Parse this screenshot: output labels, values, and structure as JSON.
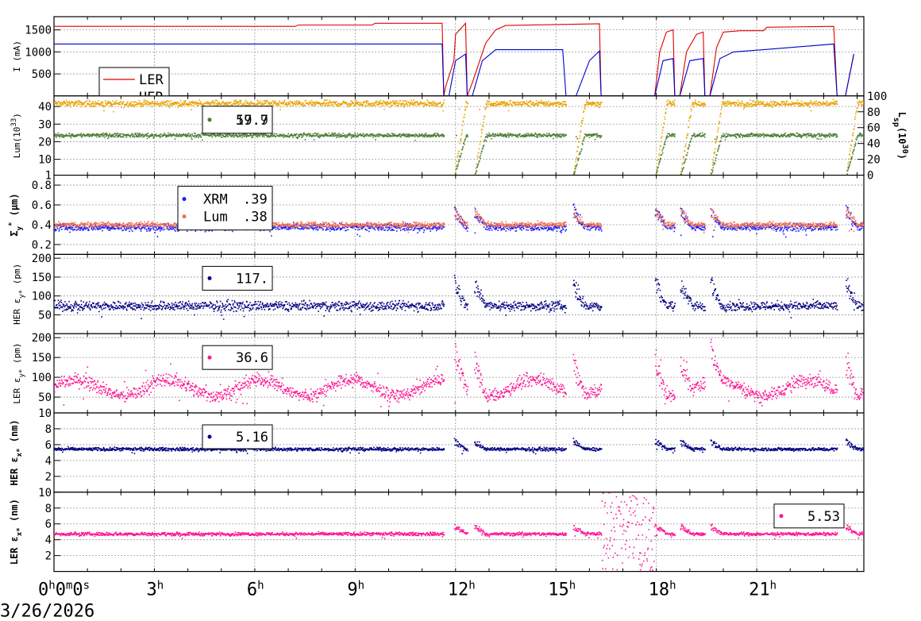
{
  "chart_data": {
    "type": "scatter",
    "date_label": "3/26/2026",
    "x_unit": "hours",
    "x_range": [
      0,
      24.2
    ],
    "x_ticks": [
      {
        "value": 0,
        "main": "0",
        "parts": [
          "h",
          "0",
          "m",
          "0",
          "s"
        ]
      },
      {
        "value": 3,
        "main": "3",
        "parts": [
          "h"
        ]
      },
      {
        "value": 6,
        "main": "6",
        "parts": [
          "h"
        ]
      },
      {
        "value": 9,
        "main": "9",
        "parts": [
          "h"
        ]
      },
      {
        "value": 12,
        "main": "12",
        "parts": [
          "h"
        ]
      },
      {
        "value": 15,
        "main": "15",
        "parts": [
          "h"
        ]
      },
      {
        "value": 18,
        "main": "18",
        "parts": [
          "h"
        ]
      },
      {
        "value": 21,
        "main": "21",
        "parts": [
          "h"
        ]
      }
    ],
    "beam_gaps_hours": [
      [
        11.65,
        11.95
      ],
      [
        12.35,
        12.55
      ],
      [
        15.3,
        15.5
      ],
      [
        16.35,
        17.95
      ],
      [
        18.55,
        18.7
      ],
      [
        19.45,
        19.6
      ],
      [
        23.4,
        23.65
      ]
    ],
    "panels": [
      {
        "id": "current",
        "ylabel": "I (mA)",
        "ylim": [
          0,
          1800
        ],
        "yticks": [
          500,
          1000,
          1500
        ],
        "legend": {
          "position": "bottom-left",
          "entries": [
            {
              "label": "LER",
              "color": "#e00000"
            },
            {
              "label": "HER",
              "color": "#0000cc"
            }
          ]
        },
        "series": [
          {
            "name": "LER",
            "color": "#e00000",
            "render": "line",
            "baseline": 1600,
            "points": [
              [
                0,
                1580
              ],
              [
                7.2,
                1580
              ],
              [
                7.3,
                1610
              ],
              [
                9.5,
                1610
              ],
              [
                9.6,
                1650
              ],
              [
                11.6,
                1650
              ],
              [
                11.65,
                0
              ],
              [
                11.7,
                200
              ],
              [
                11.95,
                800
              ],
              [
                12.0,
                1400
              ],
              [
                12.3,
                1650
              ],
              [
                12.35,
                0
              ],
              [
                12.5,
                300
              ],
              [
                12.9,
                1200
              ],
              [
                13.2,
                1500
              ],
              [
                13.5,
                1600
              ],
              [
                16.3,
                1640
              ],
              [
                16.35,
                0
              ],
              [
                17.95,
                0
              ],
              [
                18.1,
                1000
              ],
              [
                18.3,
                1450
              ],
              [
                18.5,
                1500
              ],
              [
                18.55,
                0
              ],
              [
                18.7,
                0
              ],
              [
                18.9,
                1000
              ],
              [
                19.2,
                1400
              ],
              [
                19.4,
                1450
              ],
              [
                19.45,
                0
              ],
              [
                19.6,
                0
              ],
              [
                19.8,
                1100
              ],
              [
                20.0,
                1450
              ],
              [
                20.5,
                1480
              ],
              [
                21.2,
                1480
              ],
              [
                21.3,
                1560
              ],
              [
                23.3,
                1580
              ],
              [
                23.4,
                0
              ],
              [
                23.65,
                0
              ],
              [
                23.9,
                950
              ]
            ]
          },
          {
            "name": "HER",
            "color": "#0000cc",
            "render": "line",
            "points": [
              [
                0,
                1180
              ],
              [
                11.6,
                1180
              ],
              [
                11.65,
                0
              ],
              [
                11.8,
                0
              ],
              [
                12.0,
                800
              ],
              [
                12.3,
                950
              ],
              [
                12.35,
                0
              ],
              [
                12.5,
                0
              ],
              [
                12.8,
                800
              ],
              [
                13.2,
                1050
              ],
              [
                15.2,
                1050
              ],
              [
                15.3,
                0
              ],
              [
                15.6,
                0
              ],
              [
                16.0,
                800
              ],
              [
                16.3,
                1020
              ],
              [
                16.35,
                0
              ],
              [
                17.95,
                0
              ],
              [
                18.2,
                800
              ],
              [
                18.5,
                850
              ],
              [
                18.55,
                0
              ],
              [
                18.7,
                0
              ],
              [
                19.0,
                800
              ],
              [
                19.4,
                850
              ],
              [
                19.45,
                0
              ],
              [
                19.6,
                0
              ],
              [
                19.9,
                850
              ],
              [
                20.3,
                1000
              ],
              [
                21.2,
                1050
              ],
              [
                23.3,
                1180
              ],
              [
                23.4,
                0
              ],
              [
                23.65,
                0
              ],
              [
                23.9,
                950
              ]
            ]
          }
        ]
      },
      {
        "id": "luminosity",
        "ylabel": "Lum(10",
        "ylabel_sup": "33",
        "ylabel_end": ")",
        "ylim": [
          1,
          46
        ],
        "yticks": [
          1,
          10,
          20,
          30,
          40
        ],
        "y2label": "L",
        "y2label_sub": "sp",
        "y2label_mid": "(10",
        "y2label_sup": "30",
        "y2label_end": ")",
        "y2lim": [
          0,
          100
        ],
        "y2ticks": [
          0,
          20,
          40,
          60,
          80,
          100
        ],
        "legend": {
          "position": "top-left",
          "entries": [
            {
              "label": "59.7",
              "color": "#e8a400"
            },
            {
              "label": "17.9",
              "color": "#4f7f38"
            }
          ]
        },
        "series": [
          {
            "name": "Luminosity",
            "color": "#e8a400",
            "render": "dots",
            "baseline": 42,
            "noise": 1.2
          },
          {
            "name": "Specific luminosity",
            "color": "#4f7f38",
            "render": "dots",
            "baseline": 24,
            "noise": 0.8
          }
        ]
      },
      {
        "id": "sigma_y",
        "ylabel": "Σ",
        "ylabel_sub": "y",
        "ylabel_sup": "*",
        "ylabel_end": " (μm)",
        "ylim": [
          0.1,
          0.9
        ],
        "yticks": [
          0.2,
          0.4,
          0.6,
          0.8
        ],
        "legend": {
          "position": "top-left",
          "entries": [
            {
              "label": "XRM",
              "value": ".39",
              "color": "#1a1aff"
            },
            {
              "label": "Lum",
              "value": ".38",
              "color": "#f07050"
            }
          ]
        },
        "series": [
          {
            "name": "XRM",
            "color": "#1a1aff",
            "render": "dots",
            "baseline": 0.38,
            "noise": 0.025
          },
          {
            "name": "Lum",
            "color": "#f07050",
            "render": "dots",
            "baseline": 0.405,
            "noise": 0.02
          }
        ]
      },
      {
        "id": "her_eps_y",
        "ylabel": "HER ε",
        "ylabel_sub": "y*",
        "ylabel_end": " (pm)",
        "ylim": [
          0,
          210
        ],
        "yticks": [
          50,
          100,
          150,
          200
        ],
        "legend": {
          "position": "top-left",
          "entries": [
            {
              "label": "117.",
              "color": "#000080"
            }
          ]
        },
        "series": [
          {
            "name": "HER εy*",
            "color": "#000080",
            "render": "dots",
            "baseline": 75,
            "noise": 9
          }
        ]
      },
      {
        "id": "ler_eps_y",
        "ylabel": "LER ε",
        "ylabel_sub": "y*",
        "ylabel_end": " (pm)",
        "ylim": [
          10,
          210
        ],
        "yticks": [
          10,
          50,
          100,
          150,
          200
        ],
        "legend": {
          "position": "top-left",
          "entries": [
            {
              "label": "36.6",
              "color": "#ff1493"
            }
          ]
        },
        "series": [
          {
            "name": "LER εy*",
            "color": "#ff1493",
            "render": "dots",
            "baseline": 75,
            "noise": 12
          }
        ]
      },
      {
        "id": "her_eps_x",
        "ylabel": "HER ε",
        "ylabel_sub": "x*",
        "ylabel_end": " (nm)",
        "ylim": [
          0,
          10
        ],
        "yticks": [
          2,
          4,
          6,
          8
        ],
        "legend": {
          "position": "top-left",
          "entries": [
            {
              "label": "5.16",
              "color": "#000080"
            }
          ]
        },
        "series": [
          {
            "name": "HER εx*",
            "color": "#000080",
            "render": "dots",
            "baseline": 5.5,
            "noise": 0.15
          }
        ]
      },
      {
        "id": "ler_eps_x",
        "ylabel": "LER ε",
        "ylabel_sub": "x*",
        "ylabel_end": " (nm)",
        "ylim": [
          0,
          10
        ],
        "yticks": [
          2,
          4,
          6,
          8,
          10
        ],
        "legend": {
          "position": "top-right",
          "entries": [
            {
              "label": "5.53",
              "color": "#ff1493"
            }
          ]
        },
        "series": [
          {
            "name": "LER εx*",
            "color": "#ff1493",
            "render": "dots",
            "baseline": 4.8,
            "noise": 0.15
          }
        ]
      }
    ]
  }
}
